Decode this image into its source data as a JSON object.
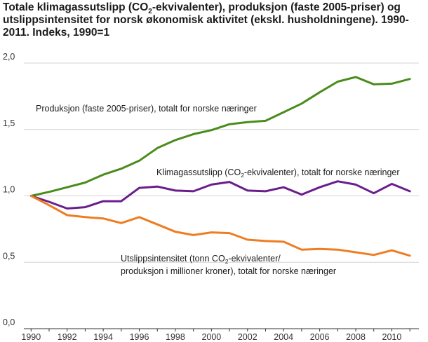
{
  "title": {
    "part1": "Totale klimagassutslipp (CO",
    "sub": "2",
    "part2": "-ekvivalenter), produksjon (faste 2005-priser) og utslippsintensitet for norsk økonomisk aktivitet (ekskl. husholdningene). 1990-2011. Indeks, 1990=1"
  },
  "chart_data": {
    "type": "line",
    "x": [
      1990,
      1991,
      1992,
      1993,
      1994,
      1995,
      1996,
      1997,
      1998,
      1999,
      2000,
      2001,
      2002,
      2003,
      2004,
      2005,
      2006,
      2007,
      2008,
      2009,
      2010,
      2011
    ],
    "xlim": [
      1989.6,
      2011.5
    ],
    "ylim": [
      0,
      2
    ],
    "x_ticks": [
      1990,
      1992,
      1994,
      1996,
      1998,
      2000,
      2002,
      2004,
      2006,
      2008,
      2010
    ],
    "y_ticks": [
      "0,0",
      "0,5",
      "1,0",
      "1,5",
      "2,0"
    ],
    "y_tick_values": [
      0,
      0.5,
      1.0,
      1.5,
      2.0
    ],
    "grid": true,
    "series": [
      {
        "name": "Produksjon (faste 2005-priser), totalt for norske næringer",
        "color": "#4a8c1c",
        "values": [
          1.0,
          1.03,
          1.065,
          1.1,
          1.16,
          1.205,
          1.265,
          1.36,
          1.42,
          1.465,
          1.495,
          1.54,
          1.555,
          1.565,
          1.63,
          1.695,
          1.78,
          1.86,
          1.895,
          1.84,
          1.845,
          1.88
        ]
      },
      {
        "name": "Klimagassutslipp (CO2-ekvivalenter), totalt for norske næringer",
        "color": "#6a1e8c",
        "values": [
          1.0,
          0.955,
          0.905,
          0.915,
          0.96,
          0.96,
          1.06,
          1.07,
          1.04,
          1.035,
          1.085,
          1.105,
          1.04,
          1.035,
          1.065,
          1.01,
          1.065,
          1.11,
          1.085,
          1.02,
          1.09,
          1.035
        ]
      },
      {
        "name": "Utslippsintensitet (tonn CO2-ekvivalenter/ produksjon i millioner kroner), totalt for norske næringer",
        "color": "#ee7d22",
        "values": [
          1.0,
          0.93,
          0.855,
          0.84,
          0.83,
          0.795,
          0.84,
          0.785,
          0.73,
          0.705,
          0.725,
          0.72,
          0.67,
          0.66,
          0.655,
          0.595,
          0.6,
          0.595,
          0.575,
          0.555,
          0.59,
          0.55
        ]
      }
    ],
    "annotations": [
      {
        "series": 0,
        "lines": [
          [
            "Produksjon (faste 2005-priser), totalt for norske næringer"
          ]
        ]
      },
      {
        "series": 1,
        "lines": [
          [
            "Klimagassutslipp (CO",
            "2",
            "-ekvivalenter), totalt for norske næringer"
          ]
        ]
      },
      {
        "series": 2,
        "lines": [
          [
            "Utslippsintensitet (tonn CO",
            "2",
            "-ekvivalenter/"
          ],
          [
            "produksjon i millioner kroner), totalt for norske næringer"
          ]
        ]
      }
    ]
  }
}
